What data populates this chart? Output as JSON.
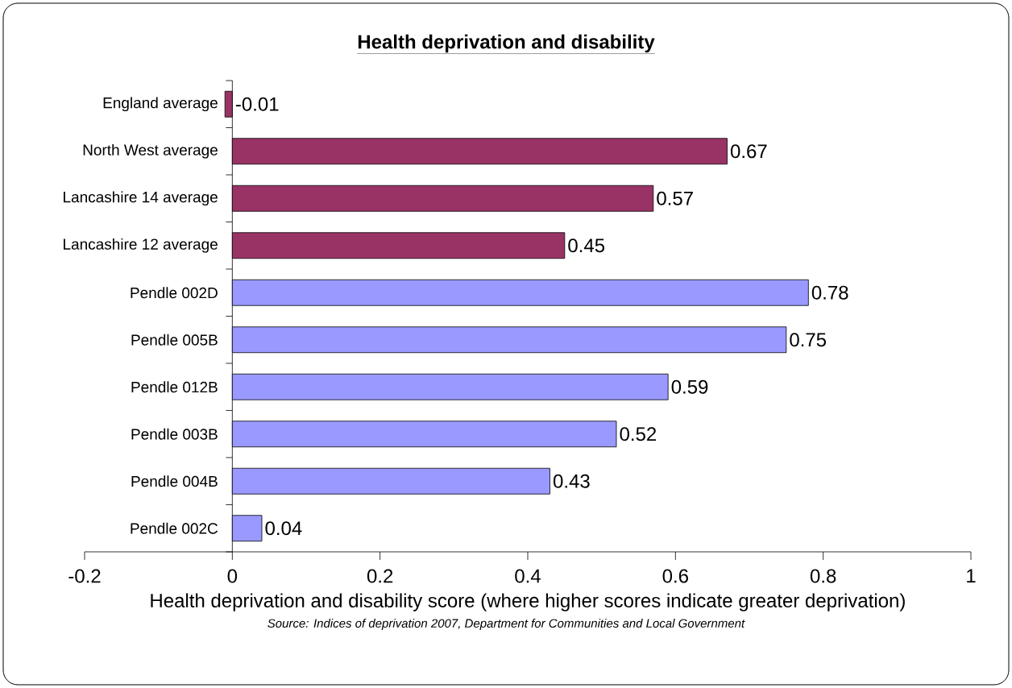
{
  "chart_data": {
    "type": "bar",
    "orientation": "horizontal",
    "title": "Health deprivation and disability",
    "categories": [
      "England average",
      "North West average",
      "Lancashire 14 average",
      "Lancashire 12 average",
      "Pendle 002D",
      "Pendle 005B",
      "Pendle 012B",
      "Pendle 003B",
      "Pendle 004B",
      "Pendle 002C"
    ],
    "values": [
      -0.01,
      0.67,
      0.57,
      0.45,
      0.78,
      0.75,
      0.59,
      0.52,
      0.43,
      0.04
    ],
    "colors": [
      "#993366",
      "#993366",
      "#993366",
      "#993366",
      "#9999ff",
      "#9999ff",
      "#9999ff",
      "#9999ff",
      "#9999ff",
      "#9999ff"
    ],
    "xlim": [
      -0.2,
      1
    ],
    "xticks": [
      -0.2,
      0,
      0.2,
      0.4,
      0.6,
      0.8,
      1
    ],
    "xlabel": "Health deprivation and disability score (where higher scores indicate greater deprivation)",
    "annotations": [
      "Source: Indices of deprivation 2007, Department for Communities and Local Government"
    ],
    "data_labels": true
  }
}
